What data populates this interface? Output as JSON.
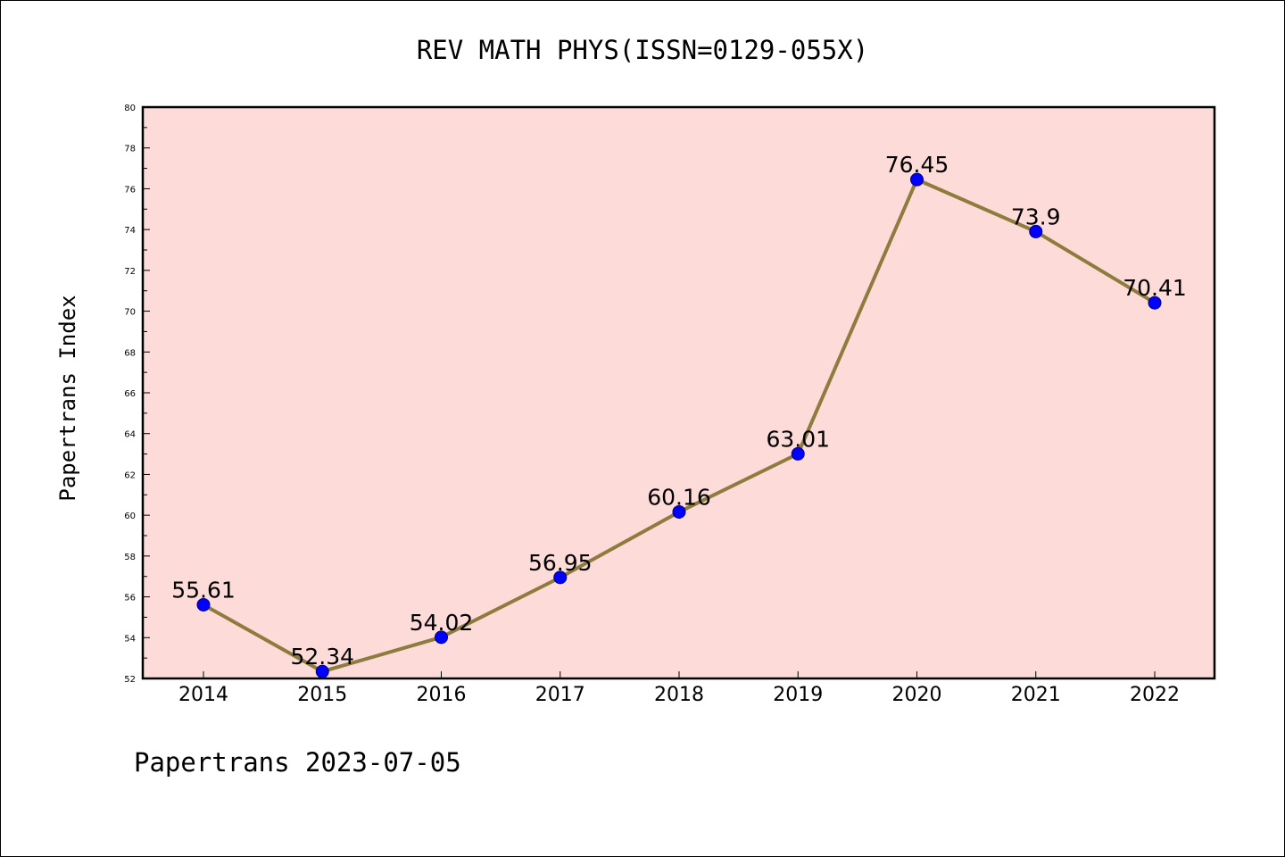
{
  "colors": {
    "plot_background": "#fddbd9",
    "line": "#8e7b3e",
    "marker_fill": "#0000ff",
    "marker_edge": "#000080",
    "axis": "#000000"
  },
  "footer": "Papertrans 2023-07-05",
  "chart_data": {
    "type": "line",
    "title": "REV MATH PHYS(ISSN=0129-055X)",
    "xlabel": "",
    "ylabel": "Papertrans Index",
    "x": [
      "2014",
      "2015",
      "2016",
      "2017",
      "2018",
      "2019",
      "2020",
      "2021",
      "2022"
    ],
    "values": [
      55.61,
      52.34,
      54.02,
      56.95,
      60.16,
      63.01,
      76.45,
      73.9,
      70.41
    ],
    "data_labels": [
      "55.61",
      "52.34",
      "54.02",
      "56.95",
      "60.16",
      "63.01",
      "76.45",
      "73.9",
      "70.41"
    ],
    "ylim": [
      52,
      80
    ],
    "yticks": [
      52,
      54,
      56,
      58,
      60,
      62,
      64,
      66,
      68,
      70,
      72,
      74,
      76,
      78,
      80
    ],
    "grid": false,
    "legend": "none"
  }
}
